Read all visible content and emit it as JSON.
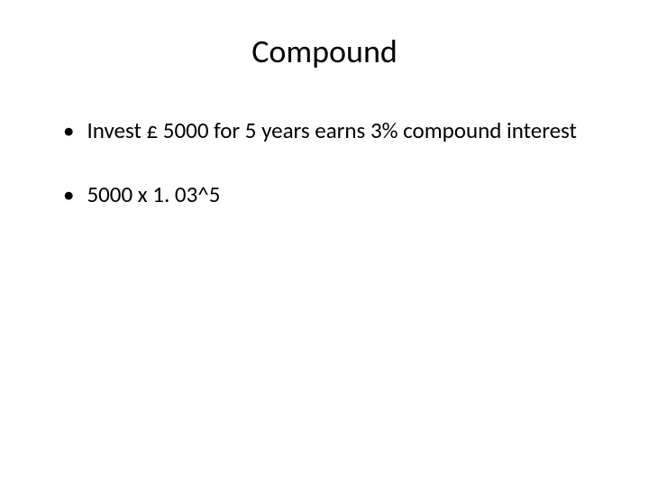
{
  "slide": {
    "title": "Compound",
    "bullets": [
      "Invest £ 5000  for 5 years earns 3% compound interest",
      "5000 x 1. 03^5"
    ]
  },
  "style": {
    "background_color": "#ffffff",
    "text_color": "#000000",
    "title_fontsize": 36,
    "body_fontsize": 25,
    "font_family": "Calibri"
  }
}
